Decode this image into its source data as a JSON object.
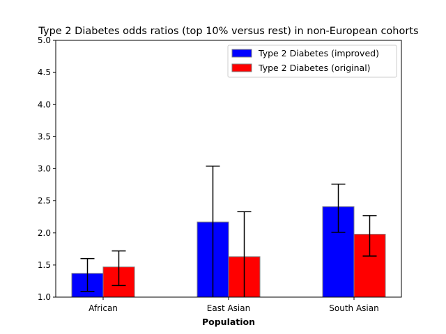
{
  "chart_data": {
    "type": "bar",
    "title": "Type 2 Diabetes odds ratios (top 10% versus rest) in non-European cohorts",
    "xlabel": "Population",
    "ylabel": "",
    "categories": [
      "African",
      "East Asian",
      "South Asian"
    ],
    "ylim": [
      1.0,
      5.0
    ],
    "yticks": [
      "1.0",
      "1.5",
      "2.0",
      "2.5",
      "3.0",
      "3.5",
      "4.0",
      "4.5",
      "5.0"
    ],
    "grid": false,
    "legend_position": "top-right",
    "series": [
      {
        "name": "Type 2 Diabetes (improved)",
        "color": "#0000ff",
        "values": [
          1.37,
          2.17,
          2.41
        ],
        "err_low": [
          1.09,
          1.0,
          2.01
        ],
        "err_high": [
          1.6,
          3.04,
          2.76
        ]
      },
      {
        "name": "Type 2 Diabetes (original)",
        "color": "#ff0000",
        "values": [
          1.47,
          1.63,
          1.98
        ],
        "err_low": [
          1.18,
          1.0,
          1.64
        ],
        "err_high": [
          1.72,
          2.33,
          2.27
        ]
      }
    ]
  }
}
